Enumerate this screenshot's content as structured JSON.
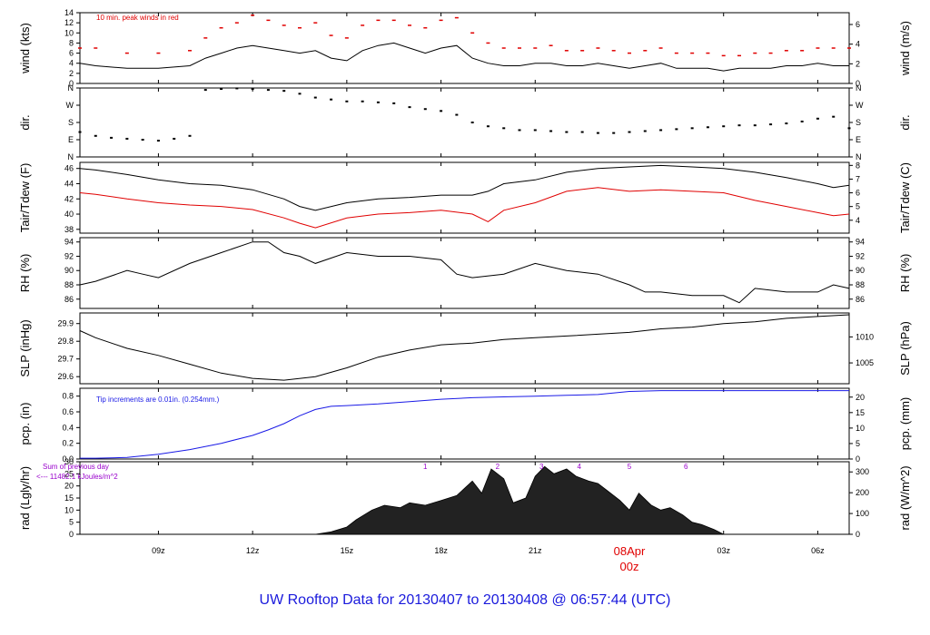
{
  "title": "UW Rooftop Data for 20130407  to  20130408 @ 06:57:44  (UTC)",
  "colors": {
    "red": "#e00000",
    "blue": "#1a1ae6",
    "purple": "#9900cc",
    "title": "#1a1adc",
    "black": "#000000"
  },
  "time_axis": {
    "start_hour": 6.5,
    "end_hour": 31,
    "ticks": [
      {
        "hour": 9,
        "label": "09z"
      },
      {
        "hour": 12,
        "label": "12z"
      },
      {
        "hour": 15,
        "label": "15z"
      },
      {
        "hour": 18,
        "label": "18z"
      },
      {
        "hour": 21,
        "label": "21z"
      },
      {
        "hour": 27,
        "label": "03z"
      },
      {
        "hour": 30,
        "label": "06z"
      }
    ],
    "date_marker": {
      "hour": 24,
      "date": "08Apr",
      "label": "00z"
    }
  },
  "chart_data": [
    {
      "id": "wind",
      "type": "line",
      "ylabel_left": "wind (kts)",
      "ylabel_right": "wind (m/s)",
      "ylim": [
        0,
        14
      ],
      "ylim_right": [
        0,
        7.2
      ],
      "yticks_left": [
        0,
        2,
        4,
        6,
        8,
        10,
        12,
        14
      ],
      "yticks_right": [
        0,
        2,
        4,
        6
      ],
      "annotation": "10 min. peak winds in red",
      "series": [
        {
          "name": "wind speed",
          "color": "#000000",
          "x": [
            6.5,
            7,
            8,
            9,
            10,
            10.5,
            11,
            11.5,
            12,
            12.5,
            13,
            13.5,
            14,
            14.5,
            15,
            15.5,
            16,
            16.5,
            17,
            17.5,
            18,
            18.5,
            19,
            19.5,
            20,
            20.5,
            21,
            21.5,
            22,
            22.5,
            23,
            23.5,
            24,
            24.5,
            25,
            25.5,
            26,
            26.5,
            27,
            27.5,
            28,
            28.5,
            29,
            29.5,
            30,
            30.5,
            31
          ],
          "y": [
            4,
            3.5,
            3,
            3,
            3.5,
            5,
            6,
            7,
            7.5,
            7,
            6.5,
            6,
            6.5,
            5,
            4.5,
            6.5,
            7.5,
            8,
            7,
            6,
            7,
            7.5,
            5,
            4,
            3.5,
            3.5,
            4,
            4,
            3.5,
            3.5,
            4,
            3.5,
            3,
            3.5,
            4,
            3,
            3,
            3,
            2.5,
            3,
            3,
            3,
            3.5,
            3.5,
            4,
            3.5,
            3.5
          ]
        },
        {
          "name": "10 min. peak winds",
          "color": "#e00000",
          "style": "dashes",
          "x": [
            6.5,
            7,
            8,
            9,
            10,
            10.5,
            11,
            11.5,
            12,
            12.5,
            13,
            13.5,
            14,
            14.5,
            15,
            15.5,
            16,
            16.5,
            17,
            17.5,
            18,
            18.5,
            19,
            19.5,
            20,
            20.5,
            21,
            21.5,
            22,
            22.5,
            23,
            23.5,
            24,
            24.5,
            25,
            25.5,
            26,
            26.5,
            27,
            27.5,
            28,
            28.5,
            29,
            29.5,
            30,
            30.5,
            31
          ],
          "y": [
            7,
            7,
            6,
            6,
            6.5,
            9,
            11,
            12,
            13.5,
            12.5,
            11.5,
            11,
            12,
            9.5,
            9,
            11.5,
            12.5,
            12.5,
            11.5,
            11,
            12.5,
            13,
            10,
            8,
            7,
            7,
            7,
            7.5,
            6.5,
            6.5,
            7,
            6.5,
            6,
            6.5,
            7,
            6,
            6,
            6,
            5.5,
            5.5,
            6,
            6,
            6.5,
            6.5,
            7,
            7,
            7
          ]
        }
      ]
    },
    {
      "id": "dir",
      "type": "scatter",
      "ylabel_left": "dir.",
      "ylabel_right": "dir.",
      "ylim": [
        0,
        360
      ],
      "ytick_labels": [
        "N",
        "E",
        "S",
        "W",
        "N"
      ],
      "series": [
        {
          "name": "wind direction",
          "color": "#000000",
          "x": [
            6.5,
            7,
            7.5,
            8,
            8.5,
            9,
            9.5,
            10,
            10.5,
            11,
            11.5,
            12,
            12.5,
            13,
            13.5,
            14,
            14.5,
            15,
            15.5,
            16,
            16.5,
            17,
            17.5,
            18,
            18.5,
            19,
            19.5,
            20,
            20.5,
            21,
            21.5,
            22,
            22.5,
            23,
            23.5,
            24,
            24.5,
            25,
            25.5,
            26,
            26.5,
            27,
            27.5,
            28,
            28.5,
            29,
            29.5,
            30,
            30.5,
            31
          ],
          "y": [
            130,
            110,
            100,
            95,
            90,
            85,
            95,
            110,
            350,
            355,
            358,
            355,
            350,
            345,
            330,
            310,
            300,
            290,
            290,
            285,
            280,
            260,
            250,
            240,
            220,
            180,
            160,
            150,
            140,
            140,
            135,
            130,
            130,
            125,
            125,
            130,
            135,
            140,
            145,
            150,
            155,
            160,
            165,
            165,
            170,
            175,
            185,
            200,
            210,
            150
          ]
        }
      ]
    },
    {
      "id": "temp",
      "type": "line",
      "ylabel_left": "Tair/Tdew (F)",
      "ylabel_right": "Tair/Tdew (C)",
      "ylim": [
        37.5,
        46.8
      ],
      "ylim_right": [
        3.06,
        8.22
      ],
      "yticks_left": [
        38,
        40,
        42,
        44,
        46
      ],
      "yticks_right": [
        4,
        5,
        6,
        7,
        8
      ],
      "series": [
        {
          "name": "Tair",
          "color": "#000000",
          "x": [
            6.5,
            7,
            8,
            9,
            10,
            11,
            12,
            13,
            13.5,
            14,
            15,
            16,
            17,
            18,
            19,
            19.5,
            20,
            21,
            22,
            23,
            24,
            25,
            26,
            27,
            28,
            29,
            30,
            30.5,
            31
          ],
          "y": [
            46,
            45.8,
            45.2,
            44.5,
            44,
            43.8,
            43.2,
            42,
            41,
            40.5,
            41.5,
            42,
            42.2,
            42.5,
            42.5,
            43,
            44,
            44.5,
            45.5,
            46,
            46.2,
            46.4,
            46.2,
            46,
            45.5,
            44.8,
            44,
            43.5,
            43.8
          ]
        },
        {
          "name": "Tdew",
          "color": "#e00000",
          "x": [
            6.5,
            7,
            8,
            9,
            10,
            11,
            12,
            13,
            13.5,
            14,
            15,
            16,
            17,
            18,
            19,
            19.5,
            20,
            21,
            22,
            23,
            24,
            25,
            26,
            27,
            28,
            29,
            30,
            30.5,
            31
          ],
          "y": [
            42.8,
            42.6,
            42,
            41.5,
            41.2,
            41,
            40.6,
            39.5,
            38.8,
            38.2,
            39.5,
            40,
            40.2,
            40.5,
            40,
            39,
            40.5,
            41.5,
            43,
            43.5,
            43,
            43.2,
            43,
            42.8,
            41.8,
            41,
            40.2,
            39.8,
            40
          ]
        }
      ]
    },
    {
      "id": "rh",
      "type": "line",
      "ylabel_left": "RH (%)",
      "ylabel_right": "RH (%)",
      "ylim": [
        84.7,
        94.6
      ],
      "yticks_left": [
        86,
        88,
        90,
        92,
        94
      ],
      "yticks_right": [
        86,
        88,
        90,
        92,
        94
      ],
      "series": [
        {
          "name": "RH",
          "color": "#000000",
          "x": [
            6.5,
            7,
            8,
            8.5,
            9,
            10,
            11,
            12,
            12.5,
            13,
            13.5,
            14,
            15,
            16,
            17,
            18,
            18.5,
            19,
            20,
            21,
            22,
            23,
            24,
            24.5,
            25,
            26,
            27,
            27.5,
            28,
            29,
            30,
            30.5,
            31
          ],
          "y": [
            88,
            88.5,
            90,
            89.5,
            89,
            91,
            92.5,
            94,
            94,
            92.5,
            92,
            91,
            92.5,
            92,
            92,
            91.5,
            89.5,
            89,
            89.5,
            91,
            90,
            89.5,
            88,
            87,
            87,
            86.5,
            86.5,
            85.5,
            87.5,
            87,
            87,
            88,
            87.5
          ]
        }
      ]
    },
    {
      "id": "slp",
      "type": "line",
      "ylabel_left": "SLP (inHg)",
      "ylabel_right": "SLP (hPa)",
      "ylim": [
        29.56,
        29.96
      ],
      "ylim_right": [
        1001,
        1014.6
      ],
      "yticks_left": [
        29.6,
        29.7,
        29.8,
        29.9
      ],
      "yticks_right": [
        1005,
        1010
      ],
      "series": [
        {
          "name": "SLP",
          "color": "#000000",
          "x": [
            6.5,
            7,
            8,
            9,
            10,
            11,
            12,
            13,
            14,
            15,
            16,
            17,
            18,
            19,
            20,
            21,
            22,
            23,
            24,
            25,
            26,
            27,
            28,
            29,
            30,
            31
          ],
          "y": [
            29.86,
            29.82,
            29.76,
            29.72,
            29.67,
            29.62,
            29.59,
            29.58,
            29.6,
            29.65,
            29.71,
            29.75,
            29.78,
            29.79,
            29.81,
            29.82,
            29.83,
            29.84,
            29.85,
            29.87,
            29.88,
            29.9,
            29.91,
            29.93,
            29.94,
            29.95
          ]
        }
      ]
    },
    {
      "id": "pcp",
      "type": "line",
      "ylabel_left": "pcp. (in)",
      "ylabel_right": "pcp. (mm)",
      "ylim": [
        0,
        0.9
      ],
      "ylim_right": [
        0,
        22.86
      ],
      "yticks_left": [
        0.0,
        0.2,
        0.4,
        0.6,
        0.8
      ],
      "yticks_right": [
        0,
        5,
        10,
        15,
        20
      ],
      "ytick_labels_left": [
        "0.0",
        "0.2",
        "0.4",
        "0.6",
        "0.8"
      ],
      "annotation": "Tip increments are 0.01in. (0.254mm.)",
      "series": [
        {
          "name": "precipitation",
          "color": "#1a1ae6",
          "x": [
            6.5,
            7,
            8,
            9,
            10,
            11,
            12,
            12.5,
            13,
            13.5,
            14,
            14.5,
            15,
            16,
            17,
            18,
            19,
            20,
            21,
            22,
            23,
            24,
            25,
            26,
            27,
            28,
            29,
            30,
            31
          ],
          "y": [
            0.01,
            0.01,
            0.02,
            0.06,
            0.12,
            0.2,
            0.3,
            0.37,
            0.45,
            0.55,
            0.63,
            0.67,
            0.68,
            0.7,
            0.73,
            0.76,
            0.78,
            0.79,
            0.8,
            0.81,
            0.82,
            0.86,
            0.87,
            0.87,
            0.87,
            0.87,
            0.87,
            0.87,
            0.87
          ]
        }
      ]
    },
    {
      "id": "rad",
      "type": "area",
      "ylabel_left": "rad (Lgly/hr)",
      "ylabel_right": "rad (W/m^2)",
      "ylim": [
        0,
        30
      ],
      "ylim_right": [
        0,
        349
      ],
      "yticks_left": [
        0,
        5,
        10,
        15,
        20,
        25,
        30
      ],
      "yticks_right": [
        0,
        100,
        200,
        300
      ],
      "annotation": {
        "line1": "Sum of previous day",
        "line2": "<--- 11482.1 kJoules/m^2"
      },
      "hour_markers": [
        {
          "hour": 17.5,
          "label": "1"
        },
        {
          "hour": 19.8,
          "label": "2"
        },
        {
          "hour": 21.2,
          "label": "3"
        },
        {
          "hour": 22.4,
          "label": "4"
        },
        {
          "hour": 24.0,
          "label": "5"
        },
        {
          "hour": 25.8,
          "label": "6"
        }
      ],
      "series": [
        {
          "name": "solar radiation",
          "color": "#000000",
          "x": [
            6.5,
            14,
            14.5,
            15,
            15.3,
            15.8,
            16.2,
            16.7,
            17,
            17.5,
            18,
            18.5,
            19,
            19.3,
            19.6,
            20,
            20.3,
            20.7,
            21,
            21.3,
            21.6,
            22,
            22.3,
            22.7,
            23,
            23.3,
            23.7,
            24,
            24.3,
            24.7,
            25,
            25.3,
            25.7,
            26,
            26.3,
            26.7,
            27,
            31
          ],
          "y": [
            0,
            0,
            1,
            3,
            6,
            10,
            12,
            11,
            13,
            12,
            14,
            16,
            22,
            17,
            27,
            23,
            13,
            15,
            24,
            28,
            25,
            27,
            24,
            22,
            21,
            18,
            14,
            10,
            17,
            12,
            10,
            11,
            8,
            5,
            4,
            2,
            0,
            0
          ]
        }
      ]
    }
  ]
}
